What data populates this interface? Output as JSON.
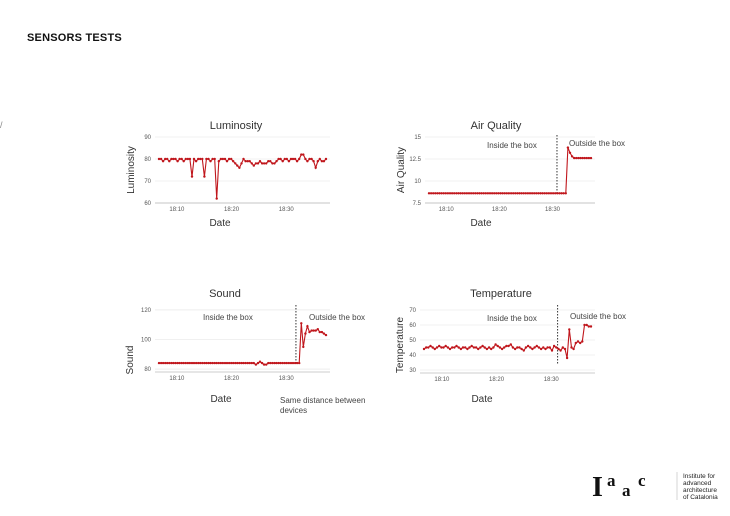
{
  "page": {
    "title": "SENSORS TESTS",
    "stray_mark": "/"
  },
  "colors": {
    "series": "#c0161c",
    "axis": "#555555",
    "grid": "#e2e2e2",
    "divider": "#333333"
  },
  "chart_data": [
    {
      "type": "line",
      "title": "Luminosity",
      "xlabel": "Date",
      "ylabel": "Luminosity",
      "xticks": [
        "18:10",
        "18:20",
        "18:30"
      ],
      "yticks": [
        "60",
        "70",
        "80",
        "90"
      ],
      "ylim": [
        60,
        90
      ],
      "x_domain": [
        "18:06",
        "18:38"
      ],
      "grid": true,
      "series": [
        {
          "values": [
            80,
            80,
            79,
            80,
            80,
            79,
            80,
            80,
            80,
            79,
            80,
            80,
            79,
            80,
            80,
            80,
            72,
            80,
            79,
            80,
            80,
            80,
            72,
            80,
            80,
            79,
            80,
            80,
            62,
            79,
            80,
            80,
            80,
            79,
            80,
            80,
            79,
            78,
            77,
            76,
            78,
            80,
            79,
            79,
            79,
            78,
            77,
            78,
            78,
            79,
            78,
            78,
            78,
            79,
            79,
            78,
            78,
            79,
            80,
            80,
            79,
            80,
            80,
            79,
            80,
            80,
            80,
            79,
            80,
            82,
            82,
            80,
            79,
            80,
            80,
            79,
            76,
            79,
            80,
            79,
            79,
            80
          ]
        }
      ]
    },
    {
      "type": "line",
      "title": "Air Quality",
      "xlabel": "Date",
      "ylabel": "Air Quality",
      "xticks": [
        "18:10",
        "18:20",
        "18:30"
      ],
      "yticks": [
        "7.5",
        "10",
        "12.5",
        "15"
      ],
      "ylim": [
        7.5,
        15
      ],
      "x_domain": [
        "18:06",
        "18:38"
      ],
      "grid": true,
      "annotations": {
        "left": "Inside the box",
        "right": "Outside the box"
      },
      "divider_x": 0.79,
      "series": [
        {
          "values": [
            8.6,
            8.6,
            8.6,
            8.6,
            8.6,
            8.6,
            8.6,
            8.6,
            8.6,
            8.6,
            8.6,
            8.6,
            8.6,
            8.6,
            8.6,
            8.6,
            8.6,
            8.6,
            8.6,
            8.6,
            8.6,
            8.6,
            8.6,
            8.6,
            8.6,
            8.6,
            8.6,
            8.6,
            8.6,
            8.6,
            8.6,
            8.6,
            8.6,
            8.6,
            8.6,
            8.6,
            8.6,
            8.6,
            8.6,
            8.6,
            8.6,
            8.6,
            8.6,
            8.6,
            8.6,
            8.6,
            8.6,
            8.6,
            8.6,
            8.6,
            8.6,
            8.6,
            8.6,
            8.6,
            8.6,
            8.6,
            8.6,
            8.6,
            8.6,
            8.6,
            8.6,
            8.6,
            8.6,
            8.6,
            8.6,
            8.6,
            13.8,
            13.2,
            12.8,
            12.6,
            12.6,
            12.6,
            12.6,
            12.6,
            12.6,
            12.6,
            12.6,
            12.6
          ]
        }
      ]
    },
    {
      "type": "line",
      "title": "Sound",
      "xlabel": "Date",
      "ylabel": "Sound",
      "xticks": [
        "18:10",
        "18:20",
        "18:30"
      ],
      "yticks": [
        "80",
        "100",
        "120"
      ],
      "ylim": [
        78,
        122
      ],
      "x_domain": [
        "18:06",
        "18:38"
      ],
      "grid": true,
      "annotations": {
        "left": "Inside the box",
        "right": "Outside the box",
        "note": "Same distance between devices"
      },
      "divider_x": 0.82,
      "series": [
        {
          "values": [
            84,
            84,
            84,
            84,
            84,
            84,
            84,
            84,
            84,
            84,
            84,
            84,
            84,
            84,
            84,
            84,
            84,
            84,
            84,
            84,
            84,
            84,
            84,
            84,
            84,
            84,
            84,
            84,
            84,
            84,
            84,
            84,
            84,
            84,
            84,
            84,
            84,
            84,
            84,
            84,
            84,
            84,
            84,
            84,
            84,
            84,
            84,
            83,
            84,
            85,
            84,
            83,
            83,
            84,
            84,
            84,
            84,
            84,
            84,
            84,
            84,
            84,
            84,
            84,
            84,
            84,
            84,
            84,
            84,
            111,
            95,
            104,
            109,
            105,
            106,
            106,
            106,
            107,
            105,
            105,
            104,
            103
          ]
        }
      ]
    },
    {
      "type": "line",
      "title": "Temperature",
      "xlabel": "Date",
      "ylabel": "Temperature",
      "xticks": [
        "18:10",
        "18:20",
        "18:30"
      ],
      "yticks": [
        "30",
        "40",
        "50",
        "60",
        "70"
      ],
      "ylim": [
        28,
        72
      ],
      "x_domain": [
        "18:06",
        "18:38"
      ],
      "grid": true,
      "annotations": {
        "left": "Inside the box",
        "right": "Outside the box"
      },
      "divider_x": 0.8,
      "series": [
        {
          "values": [
            44,
            45,
            45,
            46,
            45,
            44,
            45,
            46,
            45,
            45,
            46,
            45,
            44,
            45,
            45,
            46,
            45,
            44,
            45,
            45,
            44,
            45,
            46,
            45,
            45,
            44,
            45,
            46,
            45,
            44,
            45,
            44,
            45,
            47,
            46,
            45,
            44,
            45,
            46,
            46,
            47,
            45,
            44,
            45,
            45,
            44,
            43,
            45,
            46,
            45,
            44,
            45,
            46,
            45,
            44,
            45,
            44,
            45,
            45,
            43,
            46,
            45,
            44,
            43,
            45,
            44,
            38,
            57,
            45,
            44,
            48,
            49,
            48,
            49,
            60,
            60,
            59,
            59
          ]
        }
      ]
    }
  ],
  "logo": {
    "mark_letters": [
      "I",
      "a",
      "a",
      "c"
    ],
    "lines": [
      "Institute for",
      "advanced",
      "architecture",
      "of Catalonia"
    ]
  }
}
